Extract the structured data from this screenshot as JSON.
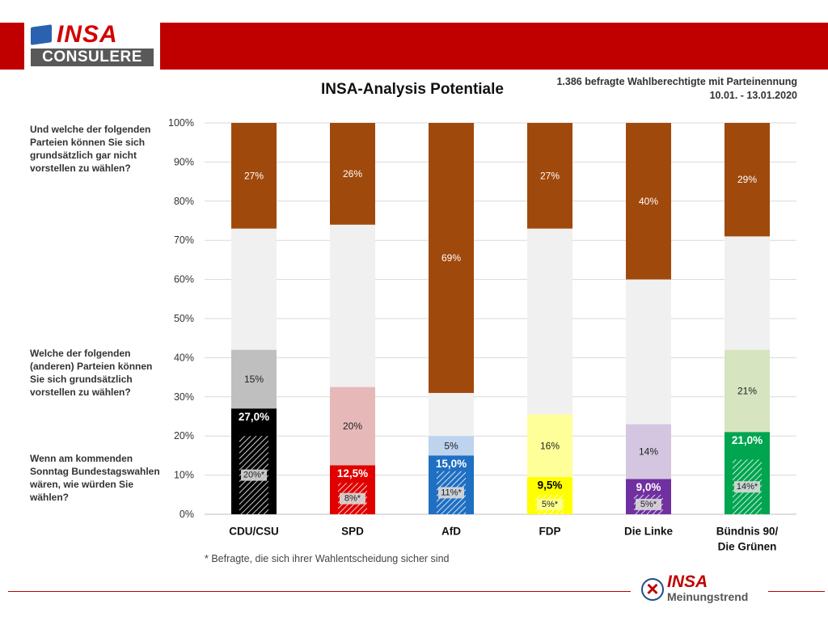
{
  "header": {
    "logo_top": "INSA",
    "logo_bottom": "CONSULERE"
  },
  "title": "INSA-Analysis Potentiale",
  "subtitle_line1": "1.386 befragte Wahlberechtigte mit Parteinennung",
  "subtitle_line2": "10.01. - 13.01.2020",
  "questions": {
    "q_top": "Und welche der folgenden Parteien können Sie sich grundsätzlich gar nicht vorstellen zu wählen?",
    "q_mid": "Welche der folgenden (anderen) Parteien können Sie sich grundsätzlich vorstellen zu wählen?",
    "q_bottom": "Wenn am kommenden Sonntag Bundestagswahlen wären, wie würden Sie wählen?"
  },
  "footnote": "* Befragte, die sich ihrer Wahlentscheidung sicher sind",
  "footer": {
    "logo_top": "INSA",
    "logo_bottom": "Meinungstrend"
  },
  "chart_data": {
    "type": "bar",
    "stacked": true,
    "y_ticks": [
      "0%",
      "10%",
      "20%",
      "30%",
      "40%",
      "50%",
      "60%",
      "70%",
      "80%",
      "90%",
      "100%"
    ],
    "ylim": [
      0,
      100
    ],
    "grid": true,
    "categories": [
      "CDU/CSU",
      "SPD",
      "AfD",
      "FDP",
      "Die Linke",
      "Bündnis 90/\nDie Grünen"
    ],
    "parties": [
      {
        "color": "#000000",
        "light": "#bfbfbf",
        "vote_text_color": "#ffffff",
        "vote": 27.0,
        "vote_label": "27,0%",
        "sure": 20,
        "sure_label": "20%*",
        "potential": 15,
        "potential_label": "15%",
        "rejection": 27,
        "rejection_label": "27%"
      },
      {
        "color": "#e00000",
        "light": "#e6b8b8",
        "vote_text_color": "#ffffff",
        "vote": 12.5,
        "vote_label": "12,5%",
        "sure": 8,
        "sure_label": "8%*",
        "potential": 20,
        "potential_label": "20%",
        "rejection": 26,
        "rejection_label": "26%"
      },
      {
        "color": "#1f6fc2",
        "light": "#bdd3ee",
        "vote_text_color": "#ffffff",
        "vote": 15.0,
        "vote_label": "15,0%",
        "sure": 11,
        "sure_label": "11%*",
        "potential": 5,
        "potential_label": "5%",
        "rejection": 69,
        "rejection_label": "69%"
      },
      {
        "color": "#ffff00",
        "light": "#ffff99",
        "vote_text_color": "#000000",
        "vote": 9.5,
        "vote_label": "9,5%",
        "sure": 5,
        "sure_label": "5%*",
        "potential": 16,
        "potential_label": "16%",
        "rejection": 27,
        "rejection_label": "27%"
      },
      {
        "color": "#7030a0",
        "light": "#d4c6e0",
        "vote_text_color": "#ffffff",
        "vote": 9.0,
        "vote_label": "9,0%",
        "sure": 5,
        "sure_label": "5%*",
        "potential": 14,
        "potential_label": "14%",
        "rejection": 40,
        "rejection_label": "40%"
      },
      {
        "color": "#00a550",
        "light": "#d6e4bf",
        "vote_text_color": "#ffffff",
        "vote": 21.0,
        "vote_label": "21,0%",
        "sure": 14,
        "sure_label": "14%*",
        "potential": 21,
        "potential_label": "21%",
        "rejection": 29,
        "rejection_label": "29%"
      }
    ],
    "rejection_color": "#a0490c",
    "remainder_color": "#f0f0f0"
  }
}
